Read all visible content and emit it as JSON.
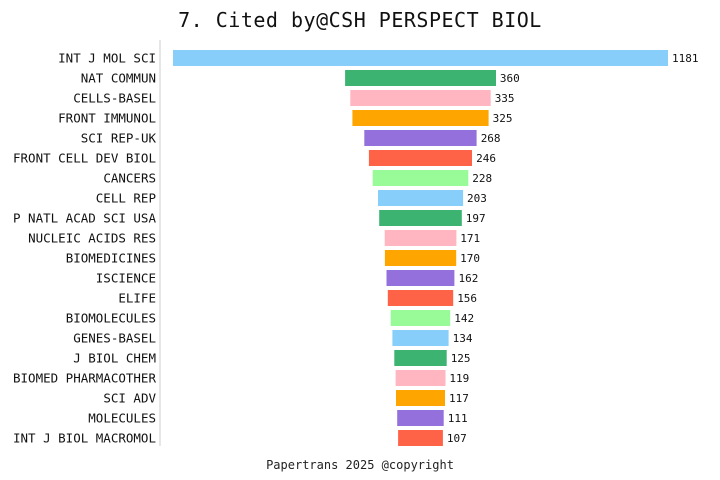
{
  "chart_data": {
    "type": "bar",
    "orientation": "horizontal",
    "title": "7. Cited by@CSH PERSPECT BIOL",
    "categories": [
      "INT J MOL SCI",
      "NAT COMMUN",
      "CELLS-BASEL",
      "FRONT IMMUNOL",
      "SCI REP-UK",
      "FRONT CELL DEV BIOL",
      "CANCERS",
      "CELL REP",
      "P NATL ACAD SCI USA",
      "NUCLEIC ACIDS RES",
      "BIOMEDICINES",
      "ISCIENCE",
      "ELIFE",
      "BIOMOLECULES",
      "GENES-BASEL",
      "J BIOL CHEM",
      "BIOMED PHARMACOTHER",
      "SCI ADV",
      "MOLECULES",
      "INT J BIOL MACROMOL"
    ],
    "values": [
      1181,
      360,
      335,
      325,
      268,
      246,
      228,
      203,
      197,
      171,
      170,
      162,
      156,
      142,
      134,
      125,
      119,
      117,
      111,
      107
    ],
    "bar_alignment": "centered",
    "colors": [
      "#87CEFA",
      "#3CB371",
      "#FFB6C1",
      "#FFA500",
      "#9370DB",
      "#FF6347",
      "#98FB98"
    ],
    "grid": false,
    "legend": "none"
  },
  "footer": "Papertrans 2025 @copyright"
}
